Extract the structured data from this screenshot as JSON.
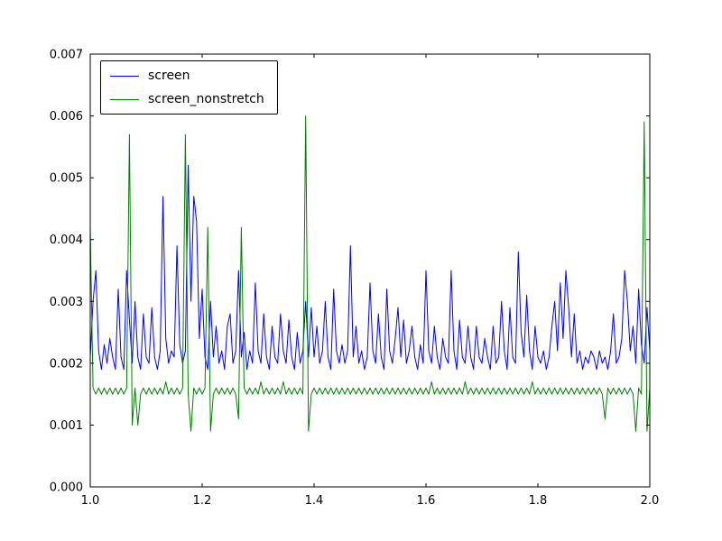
{
  "figure": {
    "background": "#ffffff",
    "frame_color": "#000000"
  },
  "chart_data": {
    "type": "line",
    "title": "",
    "xlabel": "",
    "ylabel": "",
    "xlim": [
      1.0,
      2.0
    ],
    "ylim": [
      0.0,
      0.007
    ],
    "grid": false,
    "legend_position": "upper left",
    "x_start": 1.0,
    "x_step": 0.005,
    "xticks": {
      "values": [
        1.0,
        1.2,
        1.4,
        1.6,
        1.8,
        2.0
      ],
      "labels": [
        "1.0",
        "1.2",
        "1.4",
        "1.6",
        "1.8",
        "2.0"
      ]
    },
    "yticks": {
      "values": [
        0.0,
        0.001,
        0.002,
        0.003,
        0.004,
        0.005,
        0.006,
        0.007
      ],
      "labels": [
        "0.000",
        "0.001",
        "0.002",
        "0.003",
        "0.004",
        "0.005",
        "0.006",
        "0.007"
      ]
    },
    "series": [
      {
        "name": "screen",
        "color": "#0000ff",
        "values": [
          0.0021,
          0.003,
          0.0035,
          0.0022,
          0.0019,
          0.0023,
          0.002,
          0.0024,
          0.0021,
          0.0019,
          0.0032,
          0.0021,
          0.0019,
          0.0035,
          0.0027,
          0.002,
          0.003,
          0.0021,
          0.0019,
          0.0028,
          0.0021,
          0.002,
          0.0029,
          0.0021,
          0.0019,
          0.0022,
          0.0047,
          0.0024,
          0.002,
          0.0022,
          0.0021,
          0.0039,
          0.0023,
          0.002,
          0.0022,
          0.0052,
          0.003,
          0.0047,
          0.0043,
          0.0024,
          0.0032,
          0.0021,
          0.0019,
          0.003,
          0.0021,
          0.0026,
          0.002,
          0.0022,
          0.0019,
          0.0026,
          0.0028,
          0.002,
          0.0022,
          0.0035,
          0.0021,
          0.0025,
          0.0019,
          0.0022,
          0.002,
          0.0033,
          0.0022,
          0.002,
          0.0028,
          0.0021,
          0.0019,
          0.0026,
          0.0021,
          0.002,
          0.0028,
          0.0022,
          0.002,
          0.0027,
          0.0021,
          0.0019,
          0.0025,
          0.002,
          0.0022,
          0.003,
          0.0021,
          0.0029,
          0.0021,
          0.0026,
          0.002,
          0.0022,
          0.003,
          0.0021,
          0.0019,
          0.0032,
          0.0022,
          0.002,
          0.0023,
          0.002,
          0.0022,
          0.0039,
          0.0021,
          0.0026,
          0.002,
          0.0022,
          0.0019,
          0.0021,
          0.0033,
          0.0022,
          0.002,
          0.0028,
          0.0021,
          0.0019,
          0.0032,
          0.0022,
          0.002,
          0.0024,
          0.0029,
          0.0021,
          0.0027,
          0.002,
          0.0022,
          0.0026,
          0.0021,
          0.0019,
          0.0023,
          0.002,
          0.0035,
          0.0022,
          0.002,
          0.0026,
          0.0021,
          0.0019,
          0.0024,
          0.0021,
          0.002,
          0.0035,
          0.0022,
          0.0019,
          0.0027,
          0.0021,
          0.002,
          0.0026,
          0.0021,
          0.0019,
          0.0026,
          0.0021,
          0.002,
          0.0024,
          0.0021,
          0.0019,
          0.0026,
          0.002,
          0.0021,
          0.003,
          0.0022,
          0.0019,
          0.0029,
          0.0021,
          0.002,
          0.0038,
          0.0025,
          0.0021,
          0.0031,
          0.0022,
          0.0019,
          0.0026,
          0.0021,
          0.002,
          0.0022,
          0.0019,
          0.0021,
          0.0026,
          0.003,
          0.0022,
          0.0033,
          0.0024,
          0.0035,
          0.0029,
          0.0021,
          0.0028,
          0.002,
          0.0022,
          0.0019,
          0.0021,
          0.002,
          0.0022,
          0.0021,
          0.0019,
          0.0022,
          0.002,
          0.0021,
          0.0019,
          0.0022,
          0.0028,
          0.002,
          0.0021,
          0.0024,
          0.0035,
          0.003,
          0.0022,
          0.0026,
          0.002,
          0.0032,
          0.0023,
          0.002,
          0.0029,
          0.0022
        ]
      },
      {
        "name": "screen_nonstretch",
        "color": "#008000",
        "values": [
          0.0042,
          0.0016,
          0.0015,
          0.0016,
          0.0015,
          0.0016,
          0.0015,
          0.0016,
          0.0015,
          0.0016,
          0.0015,
          0.0016,
          0.0015,
          0.0016,
          0.0057,
          0.001,
          0.0016,
          0.001,
          0.0015,
          0.0016,
          0.0015,
          0.0016,
          0.0015,
          0.0016,
          0.0015,
          0.0016,
          0.0015,
          0.0017,
          0.0015,
          0.0016,
          0.0015,
          0.0016,
          0.0015,
          0.0016,
          0.0057,
          0.0015,
          0.0009,
          0.0016,
          0.0015,
          0.0016,
          0.0015,
          0.0016,
          0.0042,
          0.0009,
          0.0015,
          0.0016,
          0.0015,
          0.0016,
          0.0015,
          0.0016,
          0.0015,
          0.0016,
          0.0015,
          0.0011,
          0.0042,
          0.0016,
          0.0015,
          0.0016,
          0.0015,
          0.0016,
          0.0015,
          0.0017,
          0.0015,
          0.0016,
          0.0015,
          0.0016,
          0.0015,
          0.0016,
          0.0015,
          0.0017,
          0.0015,
          0.0016,
          0.0015,
          0.0016,
          0.0015,
          0.0016,
          0.0015,
          0.006,
          0.0009,
          0.0015,
          0.0016,
          0.0015,
          0.0016,
          0.0015,
          0.0016,
          0.0015,
          0.0016,
          0.0015,
          0.0016,
          0.0015,
          0.0016,
          0.0015,
          0.0016,
          0.0015,
          0.0016,
          0.0015,
          0.0016,
          0.0015,
          0.0016,
          0.0015,
          0.0016,
          0.0015,
          0.0016,
          0.0015,
          0.0016,
          0.0015,
          0.0016,
          0.0015,
          0.0016,
          0.0015,
          0.0016,
          0.0015,
          0.0016,
          0.0015,
          0.0016,
          0.0015,
          0.0016,
          0.0015,
          0.0016,
          0.0015,
          0.0016,
          0.0015,
          0.0017,
          0.0015,
          0.0016,
          0.0015,
          0.0016,
          0.0015,
          0.0016,
          0.0015,
          0.0016,
          0.0015,
          0.0016,
          0.0015,
          0.0017,
          0.0015,
          0.0016,
          0.0015,
          0.0016,
          0.0015,
          0.0016,
          0.0015,
          0.0016,
          0.0015,
          0.0016,
          0.0015,
          0.0016,
          0.0015,
          0.0016,
          0.0015,
          0.0016,
          0.0015,
          0.0016,
          0.0015,
          0.0016,
          0.0015,
          0.0016,
          0.0015,
          0.0017,
          0.0015,
          0.0016,
          0.0015,
          0.0016,
          0.0015,
          0.0016,
          0.0015,
          0.0016,
          0.0015,
          0.0016,
          0.0015,
          0.0016,
          0.0015,
          0.0016,
          0.0015,
          0.0016,
          0.0015,
          0.0016,
          0.0015,
          0.0016,
          0.0015,
          0.0016,
          0.0015,
          0.0016,
          0.0015,
          0.0011,
          0.0016,
          0.0015,
          0.0016,
          0.0015,
          0.0016,
          0.0015,
          0.0016,
          0.0015,
          0.0016,
          0.0015,
          0.0009,
          0.0016,
          0.0015,
          0.0059,
          0.0009,
          0.0016
        ]
      }
    ]
  }
}
